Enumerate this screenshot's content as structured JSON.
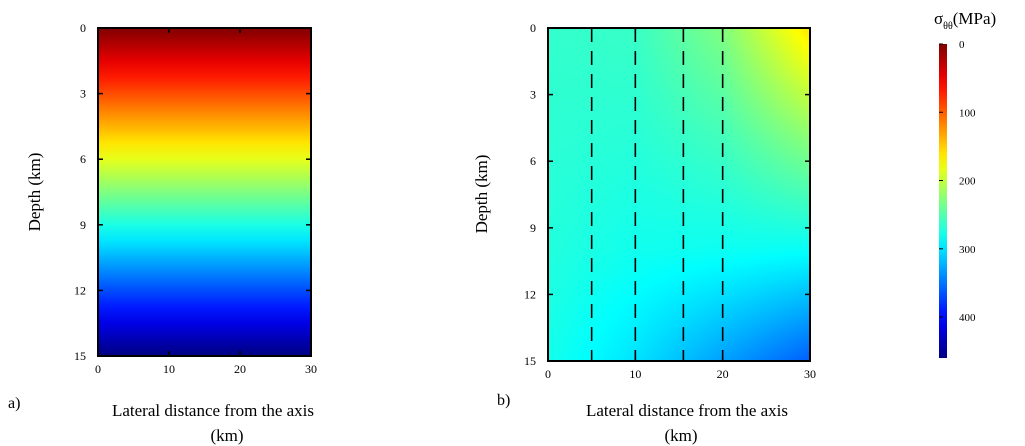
{
  "chart_data": [
    {
      "type": "heatmap",
      "panel_label": "a)",
      "xlabel_line1": "Lateral distance from the axis",
      "xlabel_line2": "(km)",
      "ylabel": "Depth (km)",
      "xlim": [
        0,
        30
      ],
      "ylim": [
        0,
        15
      ],
      "y_inverted": true,
      "xticks": [
        0,
        10,
        20,
        30
      ],
      "yticks": [
        0,
        3,
        6,
        9,
        12,
        15
      ],
      "field": "sigma_theta_theta increases linearly with depth only",
      "values": {
        "x": [
          0,
          30
        ],
        "depth": [
          0,
          15
        ],
        "grid": [
          [
            0,
            0
          ],
          [
            460,
            460
          ]
        ]
      },
      "overlay_lines": []
    },
    {
      "type": "heatmap",
      "panel_label": "b)",
      "xlabel_line1": "Lateral distance from the axis",
      "xlabel_line2": "(km)",
      "ylabel": "Depth (km)",
      "xlim": [
        0,
        30
      ],
      "ylim": [
        0,
        15
      ],
      "y_inverted": true,
      "xticks": [
        0,
        10,
        20,
        30
      ],
      "yticks": [
        0,
        3,
        6,
        9,
        12,
        15
      ],
      "values": {
        "x": [
          0,
          10,
          20,
          30
        ],
        "depth": [
          0,
          5,
          10,
          15
        ],
        "grid": [
          [
            265,
            262,
            230,
            160
          ],
          [
            268,
            270,
            258,
            225
          ],
          [
            272,
            280,
            282,
            285
          ],
          [
            278,
            300,
            330,
            360
          ]
        ]
      },
      "overlay_lines": [
        {
          "style": "dashed",
          "x": 5
        },
        {
          "style": "dashed",
          "x": 10
        },
        {
          "style": "dashed",
          "x": 15.5
        },
        {
          "style": "dashed",
          "x": 20
        }
      ]
    }
  ],
  "colorbar": {
    "title_symbol": "σ",
    "title_subscript": "θθ",
    "title_unit": "(MPa)",
    "ticks": [
      0,
      100,
      200,
      300,
      400
    ],
    "range": [
      0,
      460
    ],
    "colormap": "jet",
    "reversed": true
  }
}
